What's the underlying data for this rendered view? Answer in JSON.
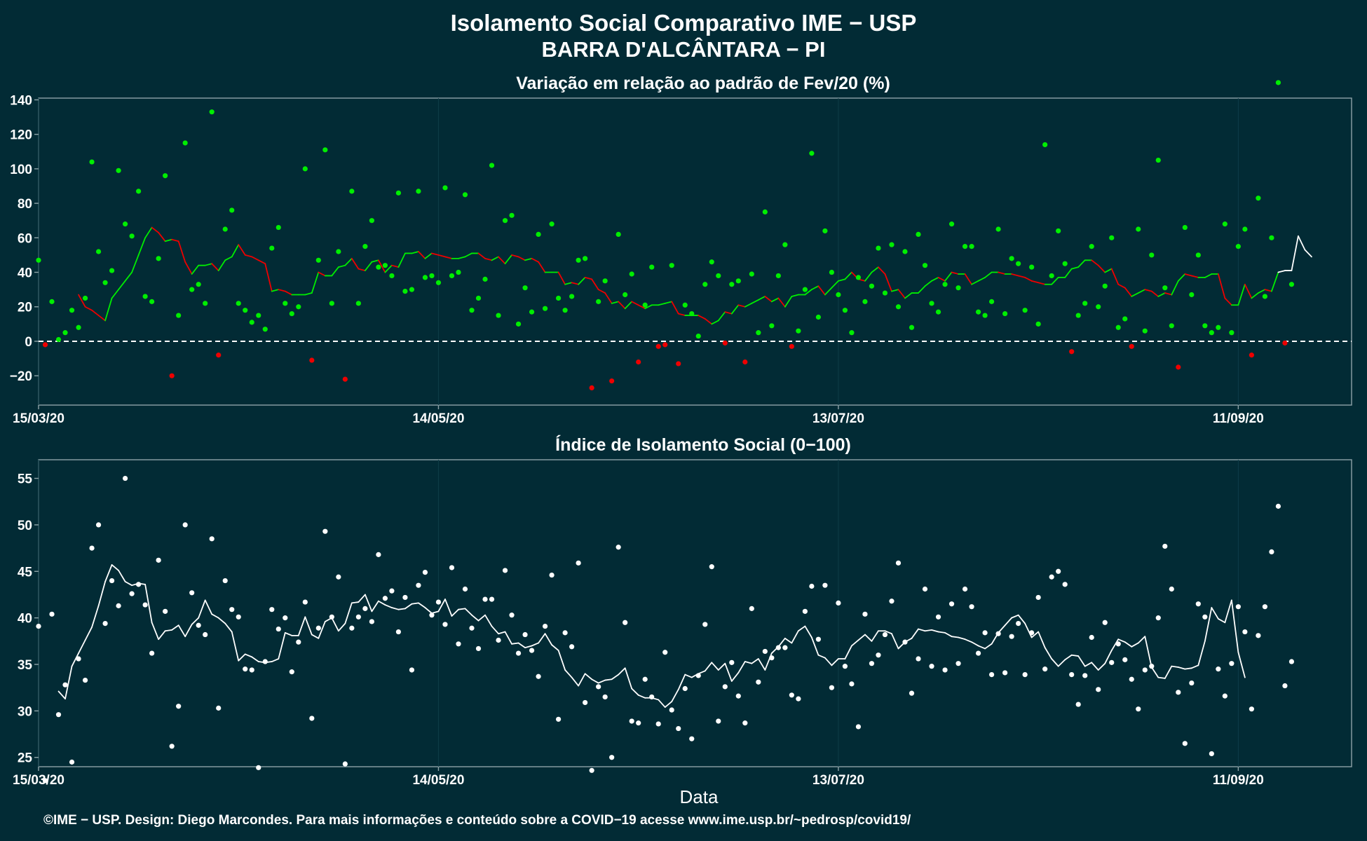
{
  "title": "Isolamento Social Comparativo IME − USP",
  "subtitle": "BARRA D'ALCÂNTARA − PI",
  "footer": "©IME − USP. Design: Diego Marcondes. Para mais informações e conteúdo sobre a COVID−19 acesse www.ime.usp.br/~pedrosp/covid19/",
  "colors": {
    "background": "#022b35",
    "positive": "#00ee00",
    "negative": "#ee0000",
    "index": "#ffffff",
    "axis": "#8ea3a8"
  },
  "chart_data": [
    {
      "type": "scatter",
      "title": "Variação em relação ao padrão de Fev/20 (%)",
      "xlabel": "",
      "ylabel": "",
      "x_start": "15/03/20",
      "x_end": "27/09/20",
      "xlim": [
        "15/03/20",
        "28/09/20"
      ],
      "ylim": [
        -37,
        141
      ],
      "yticks": [
        "140",
        "120",
        "100",
        "80",
        "60",
        "40",
        "20",
        "0",
        "−20"
      ],
      "xticks": [
        "15/03/20",
        "14/05/20",
        "13/07/20",
        "11/09/20"
      ],
      "reference_line": 0,
      "grid": false,
      "series": [
        {
          "values": [
            47,
            -2,
            23,
            1,
            5,
            18,
            8,
            25,
            104,
            52,
            34,
            41,
            99,
            68,
            61,
            87,
            26,
            23,
            48,
            96,
            -20,
            15,
            115,
            30,
            33,
            22,
            133,
            -8,
            65,
            76,
            22,
            18,
            11,
            15,
            7,
            54,
            66,
            22,
            16,
            20,
            100,
            -11,
            47,
            111,
            22,
            52,
            -22,
            87,
            22,
            55,
            70,
            43,
            44,
            38,
            86,
            29,
            30,
            87,
            37,
            38,
            34,
            89,
            38,
            40,
            85,
            18,
            25,
            36,
            102,
            15,
            70,
            73,
            10,
            31,
            17,
            62,
            19,
            68,
            25,
            18,
            26,
            47,
            48,
            -27,
            23,
            35,
            -23,
            62,
            27,
            39,
            -12,
            21,
            43,
            -3,
            -2,
            44,
            -13,
            21,
            16,
            3,
            33,
            46,
            38,
            -1,
            33,
            35,
            -12,
            39,
            5,
            75,
            9,
            38,
            56,
            -3,
            6,
            30,
            109,
            14,
            64,
            40,
            27,
            18,
            5,
            37,
            23,
            32,
            54,
            28,
            56,
            20,
            52,
            8,
            62,
            44,
            22,
            17,
            33,
            68,
            31,
            55,
            55,
            17,
            15,
            23,
            65,
            16,
            48,
            45,
            18,
            43,
            10,
            114,
            38,
            64,
            45,
            -6,
            15,
            22,
            55,
            20,
            32,
            60,
            8,
            13,
            -3,
            65,
            6,
            50,
            105,
            31,
            9,
            -15,
            66,
            27,
            50,
            9,
            5,
            8,
            68,
            5,
            55,
            65,
            -8,
            83,
            26,
            60,
            150,
            -1,
            33
          ],
          "moving_average": [
            null,
            null,
            null,
            null,
            null,
            null,
            27,
            20,
            18,
            15,
            12,
            25,
            30,
            35,
            40,
            50,
            60,
            66,
            63,
            58,
            59,
            58,
            46,
            39,
            44,
            44,
            45,
            41,
            47,
            49,
            56,
            50,
            49,
            47,
            45,
            29,
            30,
            29,
            27,
            27,
            27,
            28,
            40,
            38,
            38,
            43,
            44,
            48,
            42,
            41,
            46,
            47,
            40,
            44,
            43,
            51,
            51,
            52,
            48,
            51,
            50,
            49,
            48,
            48,
            49,
            51,
            51,
            48,
            47,
            49,
            45,
            50,
            49,
            47,
            48,
            46,
            40,
            40,
            40,
            33,
            34,
            33,
            37,
            36,
            30,
            28,
            22,
            23,
            19,
            23,
            21,
            19,
            21,
            21,
            22,
            23,
            16,
            15,
            15,
            15,
            13,
            10,
            12,
            17,
            16,
            21,
            20,
            22,
            24,
            26,
            23,
            25,
            20,
            26,
            27,
            27,
            30,
            32,
            27,
            31,
            35,
            36,
            40,
            36,
            35,
            40,
            43,
            39,
            29,
            30,
            25,
            28,
            28,
            32,
            35,
            37,
            35,
            40,
            39,
            39,
            33,
            35,
            37,
            40,
            40,
            39,
            39,
            38,
            37,
            35,
            34,
            33,
            33,
            37,
            37,
            42,
            43,
            47,
            47,
            44,
            40,
            42,
            33,
            31,
            26,
            28,
            30,
            29,
            26,
            28,
            27,
            35,
            39,
            38,
            37,
            37,
            39,
            39,
            25,
            21,
            21,
            33,
            25,
            28,
            30,
            29,
            40,
            41,
            41,
            61,
            53,
            49
          ],
          "positive_color": "#00ee00",
          "negative_color": "#ee0000"
        }
      ]
    },
    {
      "type": "scatter",
      "title": "Índice de Isolamento Social (0−100)",
      "xlabel": "Data",
      "ylabel": "",
      "x_start": "15/03/20",
      "x_end": "27/09/20",
      "xlim": [
        "15/03/20",
        "28/09/20"
      ],
      "ylim": [
        24,
        57
      ],
      "yticks": [
        "55",
        "50",
        "45",
        "40",
        "35",
        "30",
        "25"
      ],
      "xticks": [
        "15/03/20",
        "14/05/20",
        "13/07/20",
        "11/09/20"
      ],
      "grid": false,
      "series": [
        {
          "values": [
            39.1,
            22.5,
            40.4,
            29.6,
            32.8,
            24.5,
            35.6,
            33.3,
            47.5,
            50,
            39.4,
            44.0,
            41.3,
            55.0,
            42.6,
            43.6,
            41.4,
            36.2,
            46.2,
            40.7,
            26.2,
            30.5,
            50,
            42.7,
            39.2,
            38.2,
            48.5,
            30.3,
            44.0,
            40.9,
            40.1,
            34.5,
            34.4,
            23.9,
            35.3,
            40.9,
            38.8,
            40.0,
            34.2,
            37.4,
            41.7,
            29.2,
            38.9,
            49.3,
            40.1,
            44.4,
            24.3,
            38.9,
            40.1,
            41.0,
            39.6,
            46.8,
            42.1,
            42.9,
            38.5,
            42.2,
            34.4,
            43.5,
            44.9,
            40.3,
            41.7,
            39.3,
            45.4,
            37.2,
            43.1,
            38.9,
            36.7,
            42.0,
            42.0,
            37.6,
            45.1,
            40.3,
            36.2,
            38.2,
            36.5,
            33.7,
            39.1,
            44.6,
            29.1,
            38.4,
            36.9,
            45.9,
            30.9,
            23.6,
            32.6,
            31.5,
            25.0,
            47.6,
            39.5,
            28.9,
            28.7,
            33.4,
            31.5,
            28.6,
            36.3,
            30.1,
            28.1,
            32.4,
            27.0,
            33.8,
            39.3,
            45.5,
            28.9,
            32.6,
            35.2,
            31.6,
            28.7,
            41.0,
            33.1,
            36.4,
            35.7,
            36.8,
            36.8,
            31.7,
            31.3,
            40.7,
            43.4,
            37.7,
            43.5,
            32.5,
            41.6,
            34.8,
            32.9,
            28.3,
            40.4,
            35.1,
            36.0,
            38.2,
            41.8,
            45.9,
            37.4,
            31.9,
            35.6,
            43.1,
            34.8,
            40.1,
            34.4,
            41.5,
            35.1,
            43.1,
            41.2,
            36.2,
            38.4,
            33.9,
            38.3,
            34.1,
            38.0,
            39.4,
            33.9,
            38.4,
            42.2,
            34.5,
            44.4,
            45.0,
            43.6,
            33.9,
            30.7,
            33.8,
            37.9,
            32.3,
            39.5,
            35.2,
            37.2,
            35.5,
            33.4,
            30.2,
            34.4,
            34.8,
            40.0,
            47.7,
            43.1,
            32.0,
            26.5,
            33.0,
            41.5,
            40.1,
            25.4,
            34.5,
            31.6,
            35.1,
            41.2,
            38.5,
            30.2,
            38.1,
            41.2,
            47.1,
            52.0,
            32.7,
            35.3
          ],
          "moving_average": [
            null,
            null,
            null,
            32.1,
            31.3,
            34.8,
            36.2,
            37.6,
            39.0,
            41.3,
            43.9,
            45.7,
            45.1,
            43.9,
            43.5,
            43.7,
            43.6,
            39.5,
            37.7,
            38.6,
            38.7,
            39.2,
            38.0,
            39.3,
            40.0,
            41.9,
            40.4,
            40.0,
            39.4,
            38.5,
            35.4,
            36.1,
            35.8,
            35.3,
            35.2,
            35.3,
            35.6,
            38.4,
            38.1,
            38.1,
            40.1,
            38.2,
            37.8,
            39.6,
            40.0,
            38.6,
            39.4,
            41.6,
            41.7,
            42.5,
            40.7,
            41.8,
            41.4,
            41.1,
            40.9,
            41.0,
            41.5,
            41.6,
            41.1,
            40.5,
            40.7,
            42.0,
            40.2,
            40.9,
            41.0,
            40.3,
            39.7,
            40.3,
            39.1,
            38.3,
            38.5,
            37.2,
            37.3,
            36.8,
            37.0,
            37.3,
            38.3,
            37.1,
            36.5,
            34.4,
            33.6,
            32.7,
            34.0,
            33.4,
            33.0,
            33.3,
            33.4,
            33.9,
            34.6,
            32.4,
            31.7,
            31.4,
            31.4,
            31.2,
            30.4,
            31.0,
            32.3,
            33.9,
            33.6,
            34.0,
            34.3,
            35.2,
            34.4,
            35.1,
            33.2,
            34.1,
            35.3,
            35.1,
            35.6,
            34.4,
            36.2,
            36.9,
            37.8,
            37.3,
            38.6,
            39.1,
            37.9,
            36.0,
            35.7,
            34.9,
            35.6,
            35.6,
            37.0,
            37.6,
            38.2,
            37.5,
            38.6,
            38.6,
            38.3,
            36.7,
            37.4,
            37.8,
            38.8,
            38.6,
            38.7,
            38.5,
            38.4,
            38.0,
            37.9,
            37.7,
            37.4,
            37.0,
            36.7,
            37.2,
            38.4,
            39.2,
            40.0,
            40.3,
            39.4,
            37.9,
            38.5,
            36.8,
            35.6,
            34.8,
            35.5,
            36.0,
            35.9,
            34.8,
            35.2,
            34.4,
            35.1,
            36.5,
            37.7,
            37.4,
            36.9,
            37.3,
            38.0,
            34.7,
            33.6,
            33.5,
            34.8,
            34.7,
            34.5,
            34.6,
            34.9,
            37.5,
            41.1,
            39.9,
            39.5,
            41.9,
            36.3,
            33.6
          ],
          "color": "#ffffff"
        }
      ]
    }
  ]
}
